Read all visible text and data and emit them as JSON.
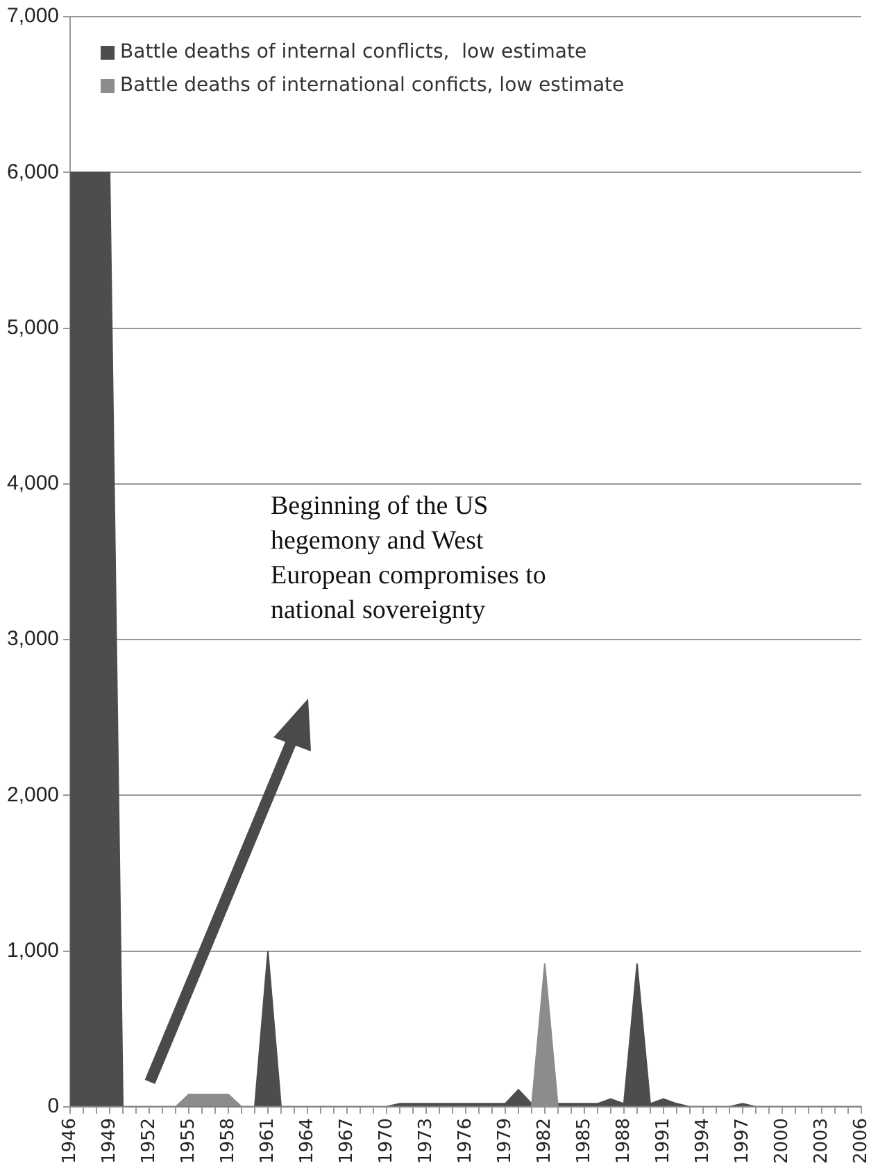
{
  "chart_data": {
    "type": "area",
    "categories": [
      "1946",
      null,
      null,
      "1949",
      null,
      null,
      "1952",
      null,
      null,
      "1955",
      null,
      null,
      "1958",
      null,
      null,
      "1961",
      null,
      null,
      "1964",
      null,
      null,
      "1967",
      null,
      null,
      "1970",
      null,
      null,
      "1973",
      null,
      null,
      "1976",
      null,
      null,
      "1979",
      null,
      null,
      "1982",
      null,
      null,
      "1985",
      null,
      null,
      "1988",
      null,
      null,
      "1991",
      null,
      null,
      "1994",
      null,
      null,
      "1997",
      null,
      null,
      "2000",
      null,
      null,
      "2003",
      null,
      null,
      "2006"
    ],
    "series": [
      {
        "name": "Battle deaths of internal conflicts,  low estimate",
        "color": "#4d4d4d",
        "values": [
          6000,
          6000,
          6000,
          6000,
          0,
          0,
          0,
          0,
          0,
          0,
          0,
          0,
          0,
          0,
          0,
          1000,
          0,
          0,
          0,
          0,
          0,
          0,
          0,
          0,
          0,
          20,
          20,
          20,
          20,
          20,
          20,
          20,
          20,
          20,
          110,
          20,
          null,
          20,
          20,
          20,
          20,
          50,
          20,
          920,
          20,
          50,
          20,
          0,
          0,
          0,
          0,
          20,
          0,
          0,
          0,
          0,
          0,
          0,
          0,
          0,
          0
        ]
      },
      {
        "name": "Battle deaths of international conficts, low estimate",
        "color": "#8c8c8c",
        "values": [
          0,
          0,
          0,
          0,
          0,
          0,
          0,
          0,
          0,
          80,
          80,
          80,
          80,
          0,
          0,
          0,
          0,
          0,
          0,
          0,
          0,
          0,
          0,
          0,
          0,
          0,
          0,
          0,
          0,
          0,
          0,
          0,
          0,
          0,
          0,
          0,
          920,
          0,
          0,
          0,
          0,
          0,
          0,
          0,
          0,
          0,
          0,
          0,
          0,
          0,
          0,
          0,
          0,
          0,
          0,
          0,
          0,
          0,
          0,
          0,
          0
        ]
      }
    ],
    "ylim": [
      0,
      7000
    ],
    "yticks": [
      {
        "value": 0,
        "label": "0"
      },
      {
        "value": 1000,
        "label": "1,000"
      },
      {
        "value": 2000,
        "label": "2,000"
      },
      {
        "value": 3000,
        "label": "3,000"
      },
      {
        "value": 4000,
        "label": "4,000"
      },
      {
        "value": 5000,
        "label": "5,000"
      },
      {
        "value": 6000,
        "label": "6,000"
      },
      {
        "value": 7000,
        "label": "7,000"
      }
    ],
    "grid": "y",
    "legend": "top left",
    "annotations": [
      "Beginning of the US hegemony and West European compromises to national sovereignty"
    ]
  }
}
